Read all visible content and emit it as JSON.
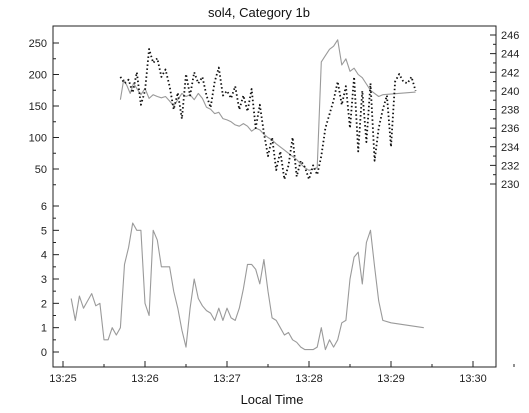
{
  "chart_data": {
    "type": "line",
    "title": "sol4, Category 1b",
    "xlabel": "Local Time",
    "grid": false,
    "legend": "none",
    "x_ticks": [
      "13:25",
      "13:26",
      "13:27",
      "13:28",
      "13:29",
      "13:30"
    ],
    "x_tick_minutes": [
      0,
      1,
      2,
      3,
      4,
      5
    ],
    "xlim_minutes": [
      0,
      5.7
    ],
    "panels": [
      {
        "id": "upper",
        "ylim_left": [
          25,
          265
        ],
        "yticks_left": [
          50,
          100,
          150,
          200,
          250
        ],
        "ylim_right": [
          228.7,
          246.6
        ],
        "yticks_right": [
          230,
          232,
          234,
          236,
          238,
          240,
          242,
          244,
          246
        ],
        "series": [
          {
            "axis": "left",
            "style": "solid",
            "color": "#9a9a9a",
            "x": [
              0.7,
              0.74,
              0.78,
              0.82,
              0.86,
              0.9,
              0.95,
              1.0,
              1.05,
              1.1,
              1.15,
              1.2,
              1.25,
              1.3,
              1.35,
              1.4,
              1.45,
              1.5,
              1.55,
              1.6,
              1.65,
              1.7,
              1.75,
              1.8,
              1.85,
              1.9,
              1.95,
              2.0,
              2.05,
              2.1,
              2.15,
              2.2,
              2.25,
              2.3,
              2.35,
              2.4,
              2.45,
              2.5,
              2.55,
              2.6,
              2.65,
              2.7,
              2.75,
              2.8,
              2.85,
              2.9,
              2.95,
              3.0,
              3.05,
              3.1,
              3.15,
              3.2,
              3.25,
              3.3,
              3.35,
              3.4,
              3.45,
              3.5,
              3.55,
              3.6,
              3.65,
              3.7,
              3.75,
              3.8,
              3.85,
              3.9,
              4.3
            ],
            "y": [
              160,
              192,
              182,
              170,
              186,
              178,
              168,
              178,
              162,
              168,
              165,
              163,
              165,
              158,
              150,
              160,
              170,
              165,
              168,
              160,
              170,
              162,
              148,
              145,
              138,
              140,
              130,
              128,
              125,
              120,
              118,
              122,
              118,
              110,
              115,
              112,
              105,
              100,
              96,
              90,
              85,
              80,
              75,
              70,
              65,
              58,
              52,
              48,
              50,
              52,
              220,
              230,
              240,
              245,
              255,
              215,
              225,
              205,
              210,
              200,
              195,
              185,
              175,
              170,
              165,
              168,
              172
            ]
          },
          {
            "axis": "right",
            "style": "dotted",
            "color": "#111111",
            "x": [
              0.7,
              0.75,
              0.8,
              0.85,
              0.9,
              0.95,
              1.0,
              1.05,
              1.1,
              1.15,
              1.2,
              1.25,
              1.3,
              1.35,
              1.4,
              1.45,
              1.5,
              1.55,
              1.6,
              1.65,
              1.7,
              1.75,
              1.8,
              1.85,
              1.9,
              1.95,
              2.0,
              2.05,
              2.1,
              2.15,
              2.2,
              2.25,
              2.3,
              2.35,
              2.4,
              2.45,
              2.5,
              2.55,
              2.6,
              2.65,
              2.7,
              2.75,
              2.8,
              2.85,
              2.9,
              2.95,
              3.0,
              3.05,
              3.1,
              3.15,
              3.2,
              3.25,
              3.3,
              3.35,
              3.4,
              3.45,
              3.5,
              3.55,
              3.6,
              3.65,
              3.7,
              3.75,
              3.8,
              3.85,
              3.9,
              3.95,
              4.0,
              4.05,
              4.1,
              4.15,
              4.2,
              4.25,
              4.3
            ],
            "y": [
              241.5,
              240.8,
              241.2,
              239.8,
              242.0,
              238.5,
              240.0,
              244.5,
              243.0,
              243.5,
              241.5,
              242.3,
              240.5,
              238.0,
              239.8,
              237.0,
              241.8,
              239.5,
              242.0,
              240.8,
              241.5,
              239.5,
              238.2,
              241.0,
              242.5,
              239.5,
              240.0,
              239.2,
              240.5,
              238.0,
              239.5,
              237.8,
              240.2,
              236.0,
              238.5,
              235.5,
              233.0,
              235.0,
              231.5,
              233.5,
              230.5,
              232.0,
              235.0,
              230.8,
              232.5,
              231.8,
              230.5,
              232.0,
              231.0,
              233.0,
              236.0,
              237.5,
              239.0,
              241.0,
              238.5,
              240.5,
              236.0,
              241.5,
              233.5,
              240.0,
              234.5,
              240.8,
              232.5,
              236.0,
              238.0,
              239.5,
              234.0,
              241.0,
              241.8,
              241.0,
              240.8,
              241.5,
              240.0
            ]
          }
        ]
      },
      {
        "id": "lower",
        "ylim_left": [
          -0.5,
          6.4
        ],
        "yticks_left": [
          0,
          1,
          2,
          3,
          4,
          5,
          6
        ],
        "series": [
          {
            "axis": "left",
            "style": "solid",
            "color": "#9a9a9a",
            "x": [
              0.1,
              0.15,
              0.2,
              0.25,
              0.3,
              0.35,
              0.4,
              0.45,
              0.5,
              0.55,
              0.6,
              0.65,
              0.7,
              0.75,
              0.8,
              0.85,
              0.9,
              0.95,
              1.0,
              1.05,
              1.1,
              1.15,
              1.2,
              1.25,
              1.3,
              1.35,
              1.4,
              1.45,
              1.5,
              1.55,
              1.6,
              1.65,
              1.7,
              1.75,
              1.8,
              1.85,
              1.9,
              1.95,
              2.0,
              2.05,
              2.1,
              2.15,
              2.2,
              2.25,
              2.3,
              2.35,
              2.4,
              2.45,
              2.5,
              2.55,
              2.6,
              2.65,
              2.7,
              2.75,
              2.8,
              2.85,
              2.9,
              2.95,
              3.0,
              3.05,
              3.1,
              3.15,
              3.2,
              3.25,
              3.3,
              3.35,
              3.4,
              3.45,
              3.5,
              3.55,
              3.6,
              3.65,
              3.7,
              3.75,
              3.8,
              3.85,
              3.9,
              4.0,
              4.4
            ],
            "y": [
              2.2,
              1.3,
              2.3,
              1.8,
              2.1,
              2.4,
              1.9,
              2.0,
              0.5,
              0.5,
              1.0,
              0.7,
              1.0,
              3.6,
              4.3,
              5.3,
              5.0,
              5.0,
              2.0,
              1.5,
              5.0,
              4.6,
              3.5,
              3.5,
              3.5,
              2.5,
              1.8,
              0.9,
              0.2,
              1.8,
              3.0,
              2.2,
              1.9,
              1.7,
              1.6,
              1.3,
              1.8,
              1.3,
              1.8,
              1.4,
              1.3,
              1.8,
              2.6,
              3.6,
              3.6,
              3.4,
              2.8,
              3.8,
              2.5,
              1.4,
              1.3,
              1.0,
              0.7,
              0.8,
              0.5,
              0.4,
              0.2,
              0.1,
              0.1,
              0.1,
              0.2,
              1.0,
              0.1,
              0.5,
              0.2,
              0.5,
              1.2,
              1.3,
              3.0,
              3.9,
              4.1,
              2.8,
              4.5,
              5.0,
              3.5,
              2.1,
              1.3,
              1.2,
              1.0
            ]
          }
        ]
      }
    ]
  }
}
